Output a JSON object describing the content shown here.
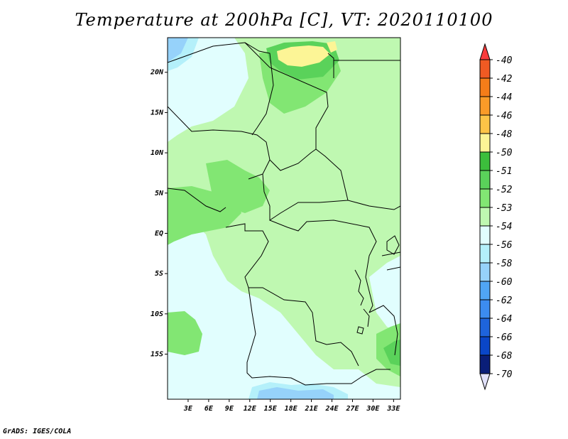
{
  "title": "Temperature at 200hPa [C], VT: 2020110100",
  "credit": "GrADS: IGES/COLA",
  "map": {
    "region": "Central Africa",
    "lat_labels": [
      {
        "lat": 20,
        "label": "20N"
      },
      {
        "lat": 15,
        "label": "15N"
      },
      {
        "lat": 10,
        "label": "10N"
      },
      {
        "lat": 5,
        "label": "5N"
      },
      {
        "lat": 0,
        "label": "EQ"
      },
      {
        "lat": -5,
        "label": "5S"
      },
      {
        "lat": -10,
        "label": "10S"
      },
      {
        "lat": -15,
        "label": "15S"
      }
    ],
    "lon_labels": [
      {
        "lon": 3,
        "label": "3E"
      },
      {
        "lon": 6,
        "label": "6E"
      },
      {
        "lon": 9,
        "label": "9E"
      },
      {
        "lon": 12,
        "label": "12E"
      },
      {
        "lon": 15,
        "label": "15E"
      },
      {
        "lon": 18,
        "label": "18E"
      },
      {
        "lon": 21,
        "label": "21E"
      },
      {
        "lon": 24,
        "label": "24E"
      },
      {
        "lon": 27,
        "label": "27E"
      },
      {
        "lon": 30,
        "label": "30E"
      },
      {
        "lon": 33,
        "label": "33E"
      }
    ]
  },
  "colorbar": {
    "levels": [
      {
        "label": "-40",
        "color": "#fa3c3c"
      },
      {
        "label": "-42",
        "color": "#f05a23"
      },
      {
        "label": "-44",
        "color": "#f57d19"
      },
      {
        "label": "-46",
        "color": "#fa9b28"
      },
      {
        "label": "-48",
        "color": "#fdc447"
      },
      {
        "label": "-50",
        "color": "#fcf596"
      },
      {
        "label": "-51",
        "color": "#3cbe3c"
      },
      {
        "label": "-52",
        "color": "#5ad25a"
      },
      {
        "label": "-53",
        "color": "#82e673"
      },
      {
        "label": "-54",
        "color": "#bff8b1"
      },
      {
        "label": "-56",
        "color": "#e1fefe"
      },
      {
        "label": "-58",
        "color": "#b4f0fa"
      },
      {
        "label": "-60",
        "color": "#96d2fa"
      },
      {
        "label": "-62",
        "color": "#50a5f5"
      },
      {
        "label": "-64",
        "color": "#3c8cf0"
      },
      {
        "label": "-66",
        "color": "#1e64dc"
      },
      {
        "label": "-68",
        "color": "#0a46c8"
      },
      {
        "label": "-70",
        "color": "#0a1e78"
      }
    ],
    "top_color": "#fa3c3c",
    "bottom_color": "#e1e1fa"
  }
}
